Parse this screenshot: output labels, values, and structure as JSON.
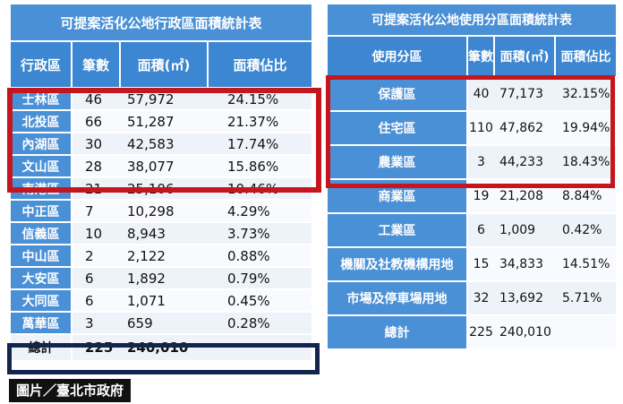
{
  "chart_data": [
    {
      "type": "table",
      "title": "可提案活化公地行政區面積統計表",
      "columns": [
        "行政區",
        "筆數",
        "面積(㎡)",
        "面積佔比"
      ],
      "rows": [
        {
          "name": "士林區",
          "count": "46",
          "area": "57,972",
          "share": "24.15%"
        },
        {
          "name": "北投區",
          "count": "66",
          "area": "51,287",
          "share": "21.37%"
        },
        {
          "name": "內湖區",
          "count": "30",
          "area": "42,583",
          "share": "17.74%"
        },
        {
          "name": "文山區",
          "count": "28",
          "area": "38,077",
          "share": "15.86%"
        },
        {
          "name": "南港區",
          "count": "21",
          "area": "25,106",
          "share": "10.46%"
        },
        {
          "name": "中正區",
          "count": "7",
          "area": "10,298",
          "share": "4.29%"
        },
        {
          "name": "信義區",
          "count": "10",
          "area": "8,943",
          "share": "3.73%"
        },
        {
          "name": "中山區",
          "count": "2",
          "area": "2,122",
          "share": "0.88%"
        },
        {
          "name": "大安區",
          "count": "6",
          "area": "1,892",
          "share": "0.79%"
        },
        {
          "name": "大同區",
          "count": "6",
          "area": "1,071",
          "share": "0.45%"
        },
        {
          "name": "萬華區",
          "count": "3",
          "area": "659",
          "share": "0.28%"
        }
      ],
      "total": {
        "name": "總計",
        "count": "225",
        "area": "240,010",
        "share": ""
      }
    },
    {
      "type": "table",
      "title": "可提案活化公地使用分區面積統計表",
      "columns": [
        "使用分區",
        "筆數",
        "面積(㎡)",
        "面積佔比"
      ],
      "rows": [
        {
          "name": "保護區",
          "count": "40",
          "area": "77,173",
          "share": "32.15%"
        },
        {
          "name": "住宅區",
          "count": "110",
          "area": "47,862",
          "share": "19.94%"
        },
        {
          "name": "農業區",
          "count": "3",
          "area": "44,233",
          "share": "18.43%"
        },
        {
          "name": "商業區",
          "count": "19",
          "area": "21,208",
          "share": "8.84%"
        },
        {
          "name": "工業區",
          "count": "6",
          "area": "1,009",
          "share": "0.42%"
        },
        {
          "name": "機關及社教機構用地",
          "count": "15",
          "area": "34,833",
          "share": "14.51%"
        },
        {
          "name": "市場及停車場用地",
          "count": "32",
          "area": "13,692",
          "share": "5.71%"
        }
      ],
      "total": {
        "name": "總計",
        "count": "225",
        "area": "240,010",
        "share": ""
      }
    }
  ],
  "highlight_colors": {
    "red": "#c4161c",
    "navy": "#12254f",
    "header_blue": "#3d86d1"
  },
  "credit": "圖片／臺北市政府"
}
